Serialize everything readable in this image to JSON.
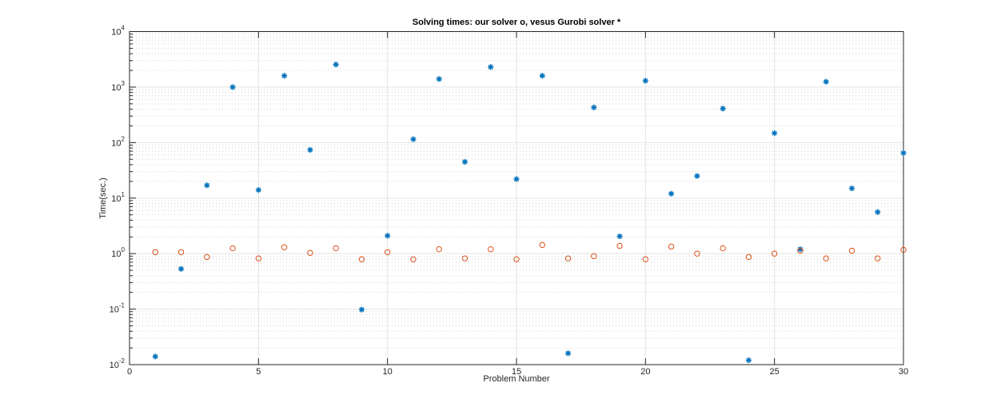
{
  "chart_data": {
    "type": "scatter",
    "title": "Solving times: our solver o, vesus Gurobi solver *",
    "xlabel": "Problem Number",
    "ylabel": "Time(sec.)",
    "xlim": [
      0,
      30
    ],
    "ylim": [
      0.01,
      10000
    ],
    "yscale": "log",
    "grid": true,
    "minor_grid": true,
    "x_ticks": [
      "0",
      "5",
      "10",
      "15",
      "20",
      "25",
      "30"
    ],
    "y_ticks": [
      {
        "base": "10",
        "exp": "-2"
      },
      {
        "base": "10",
        "exp": "-1"
      },
      {
        "base": "10",
        "exp": "0"
      },
      {
        "base": "10",
        "exp": "1"
      },
      {
        "base": "10",
        "exp": "2"
      },
      {
        "base": "10",
        "exp": "3"
      },
      {
        "base": "10",
        "exp": "4"
      }
    ],
    "x": [
      1,
      2,
      3,
      4,
      5,
      6,
      7,
      8,
      9,
      10,
      11,
      12,
      13,
      14,
      15,
      16,
      17,
      18,
      19,
      20,
      21,
      22,
      23,
      24,
      25,
      26,
      27,
      28,
      29,
      30
    ],
    "series": [
      {
        "marker": "*",
        "color": "#0072BD",
        "values": [
          0.014,
          0.53,
          17,
          1000,
          14,
          1600,
          74,
          2550,
          0.098,
          2.1,
          115,
          1400,
          45,
          2300,
          22,
          1600,
          0.016,
          430,
          2.05,
          1300,
          12,
          25,
          410,
          0.012,
          148,
          1.2,
          1250,
          15,
          5.6,
          65
        ]
      },
      {
        "marker": "o",
        "color": "#D95319",
        "values": [
          1.06,
          1.06,
          0.87,
          1.25,
          0.82,
          1.3,
          1.03,
          1.25,
          0.79,
          1.06,
          0.79,
          1.2,
          0.82,
          1.2,
          0.79,
          1.43,
          0.82,
          0.9,
          1.38,
          0.79,
          1.34,
          1.0,
          1.25,
          0.87,
          1.0,
          1.13,
          0.82,
          1.13,
          0.82,
          1.17
        ]
      }
    ]
  }
}
